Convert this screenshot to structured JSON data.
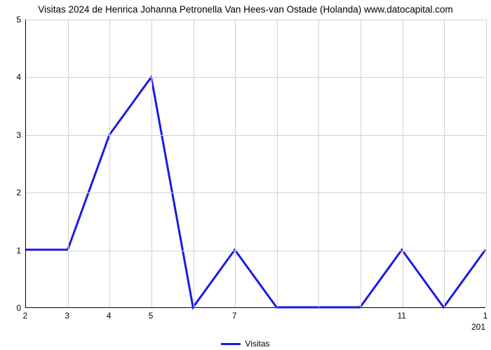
{
  "chart": {
    "type": "line",
    "title": "Visitas 2024 de Henrica Johanna Petronella Van Hees-van Ostade (Holanda) www.datocapital.com",
    "title_fontsize": 13.5,
    "background_color": "#ffffff",
    "grid_color": "#d0d0d0",
    "axis_color": "#000000",
    "line_color": "#1a1ae6",
    "line_width": 3,
    "x_sublabel": "201",
    "ylim": [
      0,
      5
    ],
    "ytick_step": 1,
    "yticks": [
      "0",
      "1",
      "2",
      "3",
      "4",
      "5"
    ],
    "x_count": 12,
    "xtick_labels": [
      "2",
      "3",
      "4",
      "5",
      "",
      "7",
      "",
      "",
      "",
      "11",
      "",
      "1"
    ],
    "values": [
      1,
      1,
      3,
      4,
      0,
      1,
      0,
      0,
      0,
      1,
      0,
      1
    ],
    "legend_label": "Visitas"
  }
}
